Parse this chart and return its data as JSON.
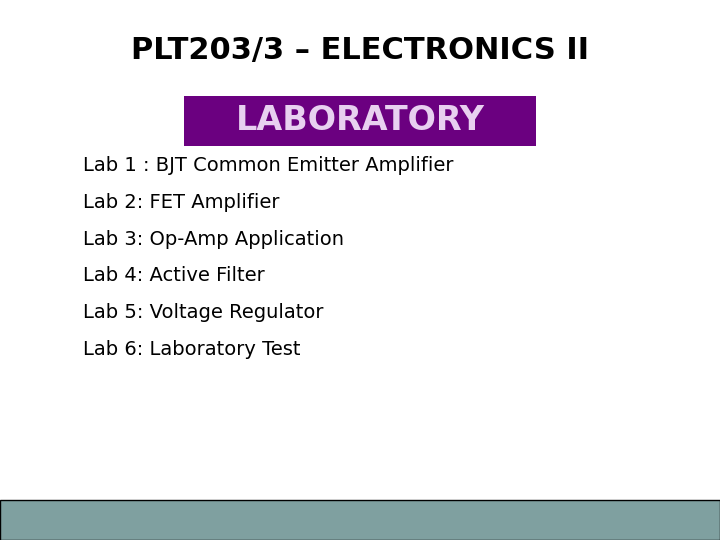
{
  "title": "PLT203/3 – ELECTRONICS II",
  "lab_banner": "LABORATORY",
  "banner_bg_color": "#6B0080",
  "banner_text_color": "#E8D0F0",
  "labs": [
    "Lab 1 : BJT Common Emitter Amplifier",
    "Lab 2: FET Amplifier",
    "Lab 3: Op-Amp Application",
    "Lab 4: Active Filter",
    "Lab 5: Voltage Regulator",
    "Lab 6: Laboratory Test"
  ],
  "bg_color": "#FFFFFF",
  "title_color": "#000000",
  "lab_text_color": "#000000",
  "footer_color": "#7FA0A0",
  "title_fontsize": 22,
  "banner_fontsize": 24,
  "lab_fontsize": 14
}
